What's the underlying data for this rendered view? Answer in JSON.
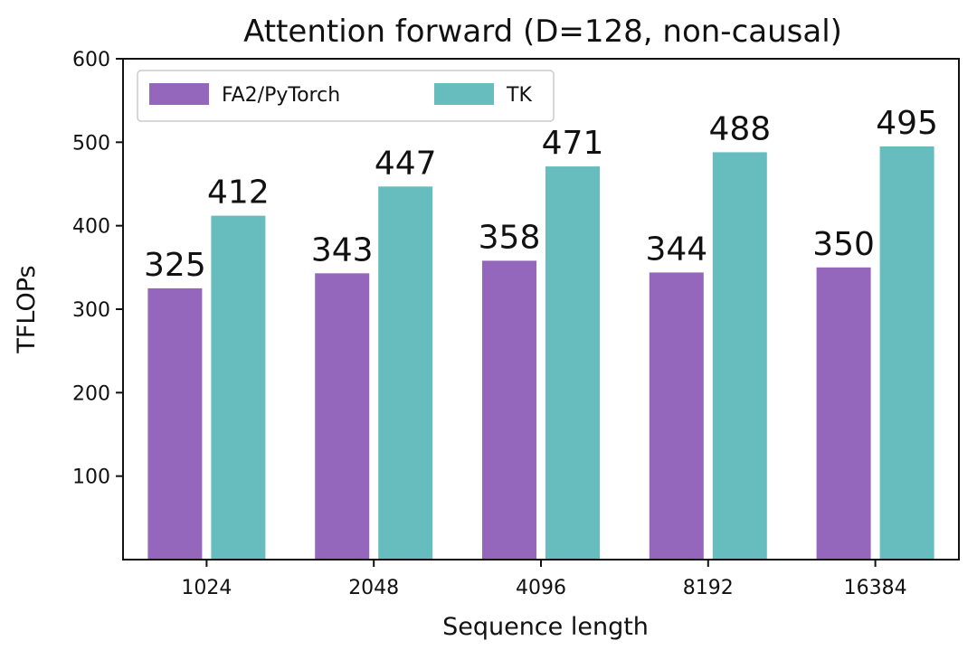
{
  "chart_data": {
    "type": "bar",
    "title": "Attention forward (D=128, non-causal)",
    "xlabel": "Sequence length",
    "ylabel": "TFLOPs",
    "categories": [
      "1024",
      "2048",
      "4096",
      "8192",
      "16384"
    ],
    "yticks": [
      100,
      200,
      300,
      400,
      500,
      600
    ],
    "ylim": [
      0,
      600
    ],
    "grid": false,
    "legend_position": "top-left",
    "series": [
      {
        "name": "FA2/PyTorch",
        "color": "#9467bd",
        "values": [
          325,
          343,
          358,
          344,
          350
        ]
      },
      {
        "name": "TK",
        "color": "#67bdbd",
        "values": [
          412,
          447,
          471,
          488,
          495
        ]
      }
    ]
  }
}
